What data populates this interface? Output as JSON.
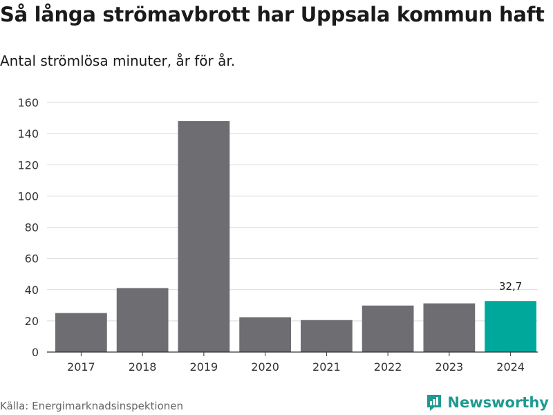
{
  "header": {
    "title": "Så långa strömavbrott har Uppsala kommun haft",
    "subtitle": "Antal strömlösa minuter, år för år."
  },
  "footer": {
    "source": "Källa: Energimarknadsinspektionen",
    "brand": "Newsworthy",
    "brand_icon": "newsworthy-logo-icon"
  },
  "colors": {
    "bar": "#6d6d72",
    "highlight": "#00a89c",
    "brand": "#1f9a92",
    "grid": "#d9d9d9",
    "axis": "#333333"
  },
  "chart_data": {
    "type": "bar",
    "title": "Så långa strömavbrott har Uppsala kommun haft",
    "subtitle": "Antal strömlösa minuter, år för år.",
    "categories": [
      "2017",
      "2018",
      "2019",
      "2020",
      "2021",
      "2022",
      "2023",
      "2024"
    ],
    "values": [
      25,
      41,
      148,
      22.3,
      20.5,
      29.8,
      31.2,
      32.7
    ],
    "highlight_index": 7,
    "data_labels": [
      {
        "index": 7,
        "text": "32,7"
      }
    ],
    "xlabel": "",
    "ylabel": "",
    "ylim": [
      0,
      160
    ],
    "yticks": [
      "0",
      "20",
      "40",
      "60",
      "80",
      "100",
      "120",
      "140",
      "160"
    ],
    "grid": true,
    "legend": "none"
  }
}
